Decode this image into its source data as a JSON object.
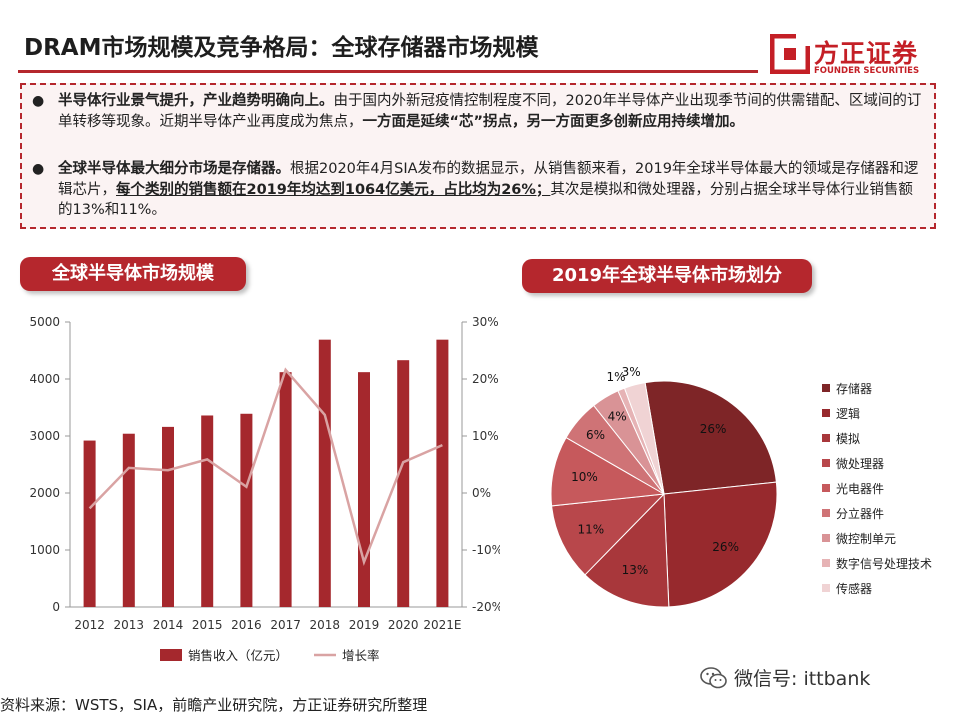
{
  "header": {
    "title": "DRAM市场规模及竞争格局：全球存储器市场规模",
    "logo_cn": "方正证券",
    "logo_en": "FOUNDER SECURITIES",
    "accent_color": "#b5272d"
  },
  "summary": {
    "bullet1": {
      "bold": "半导体行业景气提升，产业趋势明确向上。",
      "normal": "由于国内外新冠疫情控制程度不同，2020年半导体产业出现季节间的供需错配、区域间的订单转移等现象。近期半导体产业再度成为焦点，",
      "bold2": "一方面是延续“芯”拐点，另一方面更多创新应用持续增加。"
    },
    "bullet2": {
      "bold": "全球半导体最大细分市场是存储器。",
      "normal": "根据2020年4月SIA发布的数据显示，从销售额来看，2019年全球半导体最大的领域是存储器和逻辑芯片，",
      "bold2": "每个类别的销售额在2019年均达到1064亿美元，占比均为26%；",
      "normal2": "其次是模拟和微处理器，分别占据全球半导体行业销售额的13%和11%。"
    }
  },
  "sections": {
    "left_title": "全球半导体市场规模",
    "right_title": "2019年全球半导体市场划分"
  },
  "chart_data": [
    {
      "type": "bar",
      "title": "",
      "categories": [
        "2012",
        "2013",
        "2014",
        "2015",
        "2016",
        "2017",
        "2018",
        "2019",
        "2020",
        "2021E"
      ],
      "series": [
        {
          "name": "销售收入（亿元）",
          "axis": "left",
          "type": "bar",
          "color": "#a5282d",
          "values": [
            2920,
            3040,
            3160,
            3360,
            3390,
            4120,
            4690,
            4120,
            4330,
            4690
          ]
        },
        {
          "name": "增长率",
          "axis": "right",
          "type": "line",
          "color": "#d9a3a3",
          "values": [
            -2.7,
            4.4,
            4.0,
            5.9,
            1.1,
            21.6,
            13.7,
            -12.1,
            5.4,
            8.4
          ]
        }
      ],
      "left_axis": {
        "ylim": [
          0,
          5000
        ],
        "ticks": [
          "0",
          "1000",
          "2000",
          "3000",
          "4000",
          "5000"
        ]
      },
      "right_axis": {
        "ylim": [
          -20,
          30
        ],
        "ticks": [
          "-20%",
          "-10%",
          "0%",
          "10%",
          "20%",
          "30%"
        ]
      },
      "legend_position": "bottom",
      "grid": false
    },
    {
      "type": "pie",
      "title": "",
      "slices": [
        {
          "label": "存储器",
          "value": 26,
          "display": "26%",
          "color": "#7e2527"
        },
        {
          "label": "逻辑",
          "value": 26,
          "display": "26%",
          "color": "#97292d"
        },
        {
          "label": "模拟",
          "value": 13,
          "display": "13%",
          "color": "#a8373b"
        },
        {
          "label": "微处理器",
          "value": 11,
          "display": "11%",
          "color": "#b8474b"
        },
        {
          "label": "光电器件",
          "value": 10,
          "display": "10%",
          "color": "#c6595c"
        },
        {
          "label": "分立器件",
          "value": 6,
          "display": "6%",
          "color": "#cf7376"
        },
        {
          "label": "微控制单元",
          "value": 4,
          "display": "4%",
          "color": "#d99396"
        },
        {
          "label": "数字信号处理技术",
          "value": 1,
          "display": "1%",
          "color": "#e6b3b5"
        },
        {
          "label": "传感器",
          "value": 3,
          "display": "3%",
          "color": "#f0d3d4"
        }
      ],
      "legend_position": "right"
    }
  ],
  "footer": {
    "source": "资料来源：WSTS，SIA，前瞻产业研究院，方正证券研究所整理",
    "wechat": "微信号: ittbank"
  }
}
